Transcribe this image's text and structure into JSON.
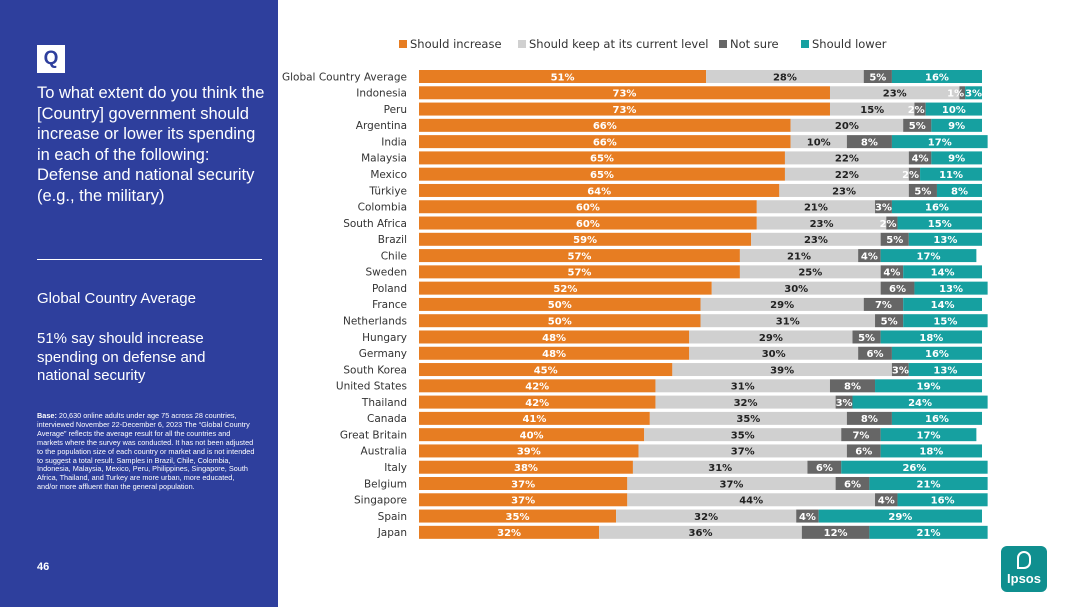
{
  "sidebar": {
    "badge": "Q",
    "question": "To what extent do you think the [Country] government should increase or lower its spending in each of the following: Defense and national security (e.g., the military)",
    "summary_title": "Global Country Average",
    "summary_text": "51% say should increase spending on defense and national security",
    "base_label": "Base:",
    "base_text": "20,630 online adults under age 75 across 28 countries, interviewed November 22-December 6, 2023 The “Global Country Average” reflects the average result for all the countries and markets where the survey was conducted. It has not been adjusted to the population size of each country or market and is not intended to suggest a total result. Samples in Brazil, Chile, Colombia, Indonesia, Malaysia, Mexico, Peru, Philippines, Singapore, South Africa, Thailand, and Turkey are more urban, more educated, and/or more affluent than the general population.",
    "page_number": "46"
  },
  "logo": {
    "text": "Ipsos"
  },
  "colors": {
    "sidebar_bg": "#2e3f9d",
    "should_increase": "#e77d22",
    "keep_current": "#d0d0d0",
    "not_sure": "#666666",
    "should_lower": "#16a0a0"
  },
  "chart_data": {
    "type": "bar",
    "orientation": "horizontal",
    "stacked": true,
    "legend_position": "top",
    "xlim": [
      0,
      100
    ],
    "categories": [
      "Global Country Average",
      "Indonesia",
      "Peru",
      "Argentina",
      "India",
      "Malaysia",
      "Mexico",
      "Türkiye",
      "Colombia",
      "South Africa",
      "Brazil",
      "Chile",
      "Sweden",
      "Poland",
      "France",
      "Netherlands",
      "Hungary",
      "Germany",
      "South Korea",
      "United States",
      "Thailand",
      "Canada",
      "Great Britain",
      "Australia",
      "Italy",
      "Belgium",
      "Singapore",
      "Spain",
      "Japan"
    ],
    "series": [
      {
        "name": "Should increase",
        "color": "#e77d22",
        "label_color": "#ffffff",
        "values": [
          51,
          73,
          73,
          66,
          66,
          65,
          65,
          64,
          60,
          60,
          59,
          57,
          57,
          52,
          50,
          50,
          48,
          48,
          45,
          42,
          42,
          41,
          40,
          39,
          38,
          37,
          37,
          35,
          32
        ]
      },
      {
        "name": "Should keep at its current level",
        "color": "#d0d0d0",
        "label_color": "#222222",
        "values": [
          28,
          23,
          15,
          20,
          10,
          22,
          22,
          23,
          21,
          23,
          23,
          21,
          25,
          30,
          29,
          31,
          29,
          30,
          39,
          31,
          32,
          35,
          35,
          37,
          31,
          37,
          44,
          32,
          36
        ]
      },
      {
        "name": "Not sure",
        "color": "#666666",
        "label_color": "#ffffff",
        "values": [
          5,
          1,
          2,
          5,
          8,
          4,
          2,
          5,
          3,
          2,
          5,
          4,
          4,
          6,
          7,
          5,
          5,
          6,
          3,
          8,
          3,
          8,
          7,
          6,
          6,
          6,
          4,
          4,
          12
        ]
      },
      {
        "name": "Should lower",
        "color": "#16a0a0",
        "label_color": "#ffffff",
        "values": [
          16,
          3,
          10,
          9,
          17,
          9,
          11,
          8,
          16,
          15,
          13,
          17,
          14,
          13,
          14,
          15,
          18,
          16,
          13,
          19,
          24,
          16,
          17,
          18,
          26,
          21,
          16,
          29,
          21
        ]
      }
    ]
  }
}
